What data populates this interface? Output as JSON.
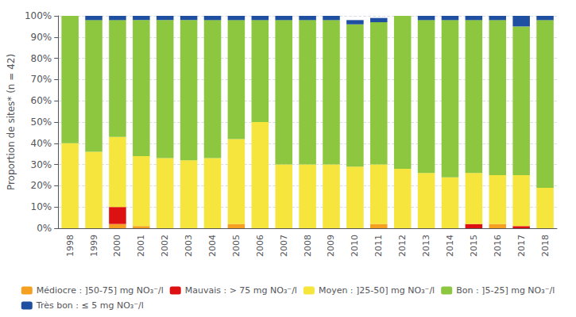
{
  "chart_data": {
    "type": "bar",
    "stacked": true,
    "categories": [
      "1998",
      "1999",
      "2000",
      "2001",
      "2002",
      "2003",
      "2004",
      "2005",
      "2006",
      "2007",
      "2008",
      "2009",
      "2010",
      "2011",
      "2012",
      "2013",
      "2014",
      "2015",
      "2016",
      "2017",
      "2018"
    ],
    "y_label": "Proportion de sites* (n = 42)",
    "ylim": [
      0,
      100
    ],
    "yticks": [
      {
        "value": 0,
        "label": "0%"
      },
      {
        "value": 10,
        "label": "10%"
      },
      {
        "value": 20,
        "label": "20%"
      },
      {
        "value": 30,
        "label": "30%"
      },
      {
        "value": 40,
        "label": "40%"
      },
      {
        "value": 50,
        "label": "50%"
      },
      {
        "value": 60,
        "label": "60%"
      },
      {
        "value": 70,
        "label": "70%"
      },
      {
        "value": 80,
        "label": "80%"
      },
      {
        "value": 90,
        "label": "90%"
      },
      {
        "value": 100,
        "label": "100%"
      }
    ],
    "grid": true,
    "legend": "bottom",
    "series": [
      {
        "name": "Médiocre : ]50-75] mg NO₃⁻/l",
        "color": "#f5a020",
        "values": [
          0,
          0,
          2,
          1,
          0,
          0,
          0,
          2,
          0,
          0,
          0,
          0,
          0,
          2,
          0,
          0,
          0,
          0,
          2,
          0,
          0
        ]
      },
      {
        "name": "Mauvais : > 75 mg NO₃⁻/l",
        "color": "#dd1111",
        "values": [
          0,
          0,
          8,
          0,
          0,
          0,
          0,
          0,
          0,
          0,
          0,
          0,
          0,
          0,
          0,
          0,
          0,
          2,
          0,
          1,
          0
        ]
      },
      {
        "name": "Moyen : ]25-50] mg NO₃⁻/l",
        "color": "#f5e53c",
        "values": [
          40,
          36,
          33,
          33,
          33,
          32,
          33,
          40,
          50,
          30,
          30,
          30,
          29,
          28,
          28,
          26,
          24,
          24,
          23,
          24,
          19
        ]
      },
      {
        "name": "Bon : ]5-25] mg NO₃⁻/l",
        "color": "#8dc63f",
        "values": [
          60,
          62,
          55,
          64,
          65,
          66,
          65,
          56,
          48,
          68,
          68,
          68,
          67,
          67,
          72,
          72,
          74,
          72,
          73,
          70,
          79
        ]
      },
      {
        "name": "Très bon : ≤ 5 mg NO₃⁻/l",
        "color": "#1f4fa0",
        "values": [
          0,
          2,
          2,
          2,
          2,
          2,
          2,
          2,
          2,
          2,
          2,
          2,
          2,
          2,
          0,
          2,
          2,
          2,
          2,
          5,
          2
        ]
      }
    ]
  }
}
